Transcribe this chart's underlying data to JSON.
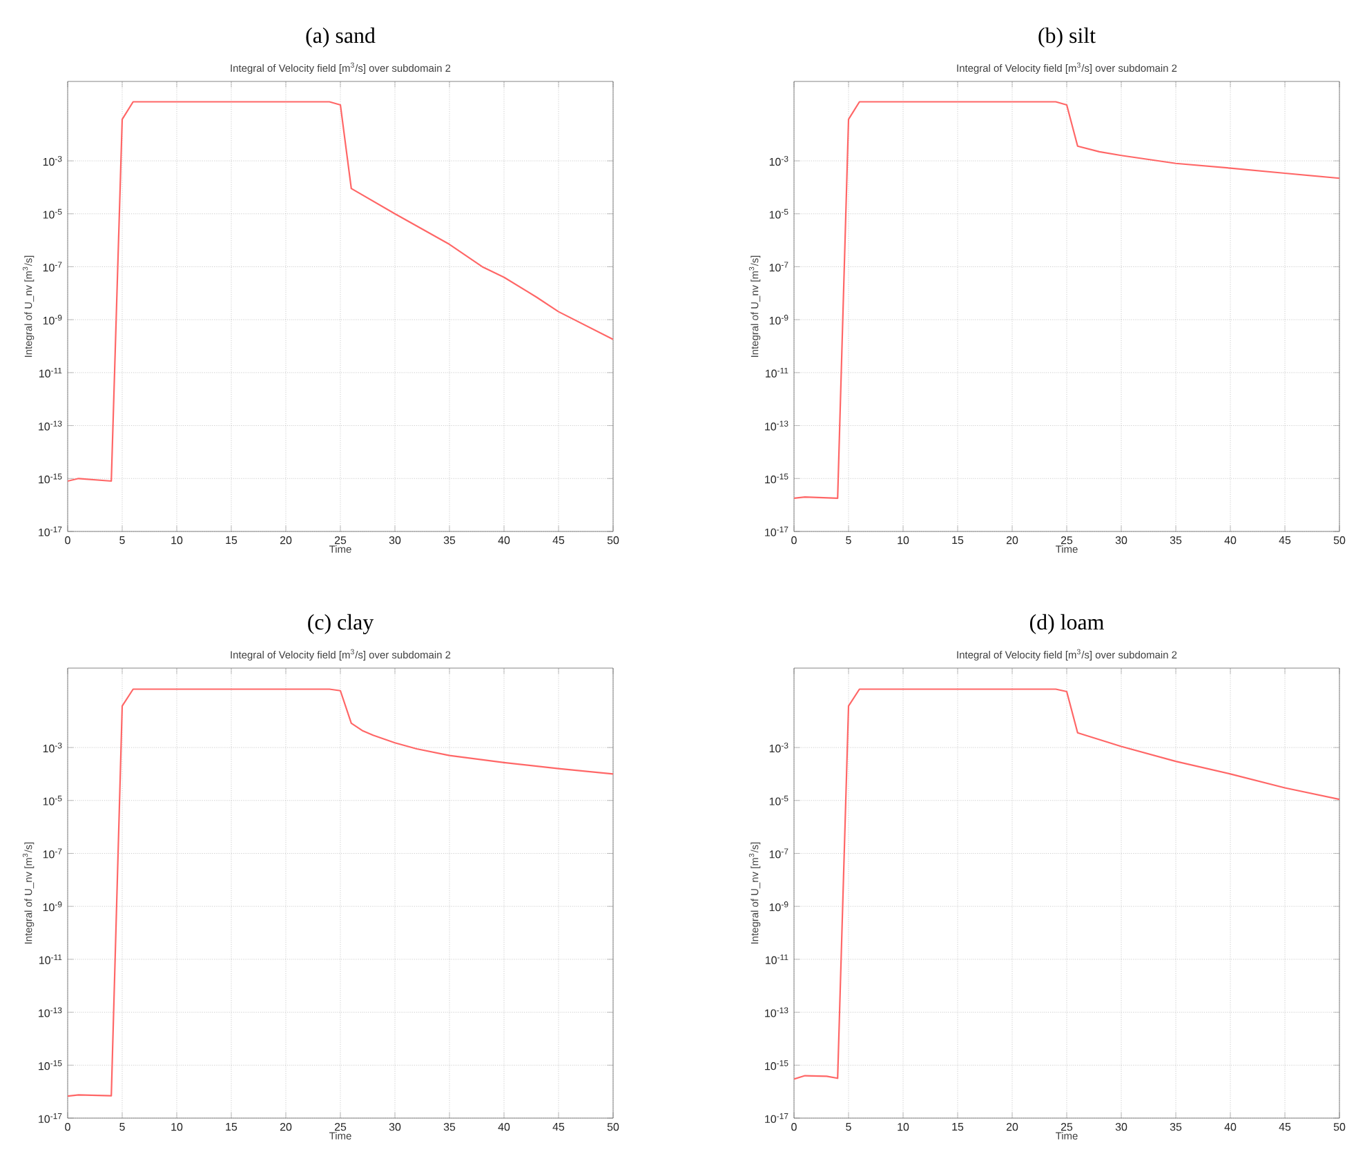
{
  "chart_data": [
    {
      "type": "line",
      "title": "(a) sand",
      "subtitle": "Integral of Velocity field [m$^{3}$/s] over subdomain 2",
      "xlabel": "Time",
      "ylabel": "Integral of U_nv [m$^{3}$/s]",
      "log": "y",
      "grid": true,
      "xlim": [
        0,
        50
      ],
      "ylim": [
        1e-17,
        1
      ],
      "xticks": [
        0,
        5,
        10,
        15,
        20,
        25,
        30,
        35,
        40,
        45,
        50
      ],
      "yticks": [
        {
          "value": 1e-17,
          "label": "10$^{-17}$"
        },
        {
          "value": 1e-15,
          "label": "10$^{-15}$"
        },
        {
          "value": 1e-13,
          "label": "10$^{-13}$"
        },
        {
          "value": 1e-11,
          "label": "10$^{-11}$"
        },
        {
          "value": 1e-09,
          "label": "10$^{-9}$"
        },
        {
          "value": 1e-07,
          "label": "10$^{-7}$"
        },
        {
          "value": 1e-05,
          "label": "10$^{-5}$"
        },
        {
          "value": 0.001,
          "label": "10$^{-3}$"
        }
      ],
      "series": [
        {
          "color": "#ff6666",
          "x": [
            0,
            1,
            4,
            5,
            6,
            24,
            25,
            26,
            30,
            35,
            38,
            40,
            43,
            45,
            50
          ],
          "values": [
            8e-16,
            1e-15,
            8e-16,
            0.037,
            0.17,
            0.17,
            0.13,
            9e-05,
            1e-05,
            7e-07,
            1e-07,
            4e-08,
            7e-09,
            2e-09,
            1.8e-10
          ]
        }
      ]
    },
    {
      "type": "line",
      "title": "(b) silt",
      "subtitle": "Integral of Velocity field [m$^{3}$/s] over subdomain 2",
      "xlabel": "Time",
      "ylabel": "Integral of U_nv [m$^{3}$/s]",
      "log": "y",
      "grid": true,
      "xlim": [
        0,
        50
      ],
      "ylim": [
        1e-17,
        1
      ],
      "xticks": [
        0,
        5,
        10,
        15,
        20,
        25,
        30,
        35,
        40,
        45,
        50
      ],
      "yticks": [
        {
          "value": 1e-17,
          "label": "10$^{-17}$"
        },
        {
          "value": 1e-15,
          "label": "10$^{-15}$"
        },
        {
          "value": 1e-13,
          "label": "10$^{-13}$"
        },
        {
          "value": 1e-11,
          "label": "10$^{-11}$"
        },
        {
          "value": 1e-09,
          "label": "10$^{-9}$"
        },
        {
          "value": 1e-07,
          "label": "10$^{-7}$"
        },
        {
          "value": 1e-05,
          "label": "10$^{-5}$"
        },
        {
          "value": 0.001,
          "label": "10$^{-3}$"
        }
      ],
      "series": [
        {
          "color": "#ff6666",
          "x": [
            0,
            1,
            4,
            5,
            6,
            24,
            25,
            26,
            28,
            30,
            35,
            40,
            45,
            50
          ],
          "values": [
            1.8e-16,
            2e-16,
            1.8e-16,
            0.037,
            0.17,
            0.17,
            0.13,
            0.0036,
            0.0022,
            0.0016,
            0.0008,
            0.00053,
            0.00034,
            0.00022
          ]
        }
      ]
    },
    {
      "type": "line",
      "title": "(c) clay",
      "subtitle": "Integral of Velocity field [m$^{3}$/s] over subdomain 2",
      "xlabel": "Time",
      "ylabel": "Integral of U_nv [m$^{3}$/s]",
      "log": "y",
      "grid": true,
      "xlim": [
        0,
        50
      ],
      "ylim": [
        1e-17,
        1
      ],
      "xticks": [
        0,
        5,
        10,
        15,
        20,
        25,
        30,
        35,
        40,
        45,
        50
      ],
      "yticks": [
        {
          "value": 1e-17,
          "label": "10$^{-17}$"
        },
        {
          "value": 1e-15,
          "label": "10$^{-15}$"
        },
        {
          "value": 1e-13,
          "label": "10$^{-13}$"
        },
        {
          "value": 1e-11,
          "label": "10$^{-11}$"
        },
        {
          "value": 1e-09,
          "label": "10$^{-9}$"
        },
        {
          "value": 1e-07,
          "label": "10$^{-7}$"
        },
        {
          "value": 1e-05,
          "label": "10$^{-5}$"
        },
        {
          "value": 0.001,
          "label": "10$^{-3}$"
        }
      ],
      "series": [
        {
          "color": "#ff6666",
          "x": [
            0,
            1,
            4,
            5,
            6,
            24,
            25,
            26,
            27,
            28,
            30,
            32,
            35,
            40,
            45,
            50
          ],
          "values": [
            6.8e-17,
            7.5e-17,
            7e-17,
            0.037,
            0.16,
            0.16,
            0.14,
            0.0083,
            0.0044,
            0.0029,
            0.0015,
            0.00089,
            0.0005,
            0.00027,
            0.00016,
            0.0001
          ]
        }
      ]
    },
    {
      "type": "line",
      "title": "(d) loam",
      "subtitle": "Integral of Velocity field [m$^{3}$/s] over subdomain 2",
      "xlabel": "Time",
      "ylabel": "Integral of U_nv [m$^{3}$/s]",
      "log": "y",
      "grid": true,
      "xlim": [
        0,
        50
      ],
      "ylim": [
        1e-17,
        1
      ],
      "xticks": [
        0,
        5,
        10,
        15,
        20,
        25,
        30,
        35,
        40,
        45,
        50
      ],
      "yticks": [
        {
          "value": 1e-17,
          "label": "10$^{-17}$"
        },
        {
          "value": 1e-15,
          "label": "10$^{-15}$"
        },
        {
          "value": 1e-13,
          "label": "10$^{-13}$"
        },
        {
          "value": 1e-11,
          "label": "10$^{-11}$"
        },
        {
          "value": 1e-09,
          "label": "10$^{-9}$"
        },
        {
          "value": 1e-07,
          "label": "10$^{-7}$"
        },
        {
          "value": 1e-05,
          "label": "10$^{-5}$"
        },
        {
          "value": 0.001,
          "label": "10$^{-3}$"
        }
      ],
      "series": [
        {
          "color": "#ff6666",
          "x": [
            0,
            1,
            3,
            4,
            5,
            6,
            24,
            25,
            26,
            30,
            35,
            40,
            45,
            50
          ],
          "values": [
            3e-16,
            4e-16,
            3.8e-16,
            3.2e-16,
            0.037,
            0.16,
            0.16,
            0.13,
            0.0036,
            0.0011,
            0.0003,
            0.0001,
            3e-05,
            1.1e-05
          ]
        }
      ]
    }
  ]
}
